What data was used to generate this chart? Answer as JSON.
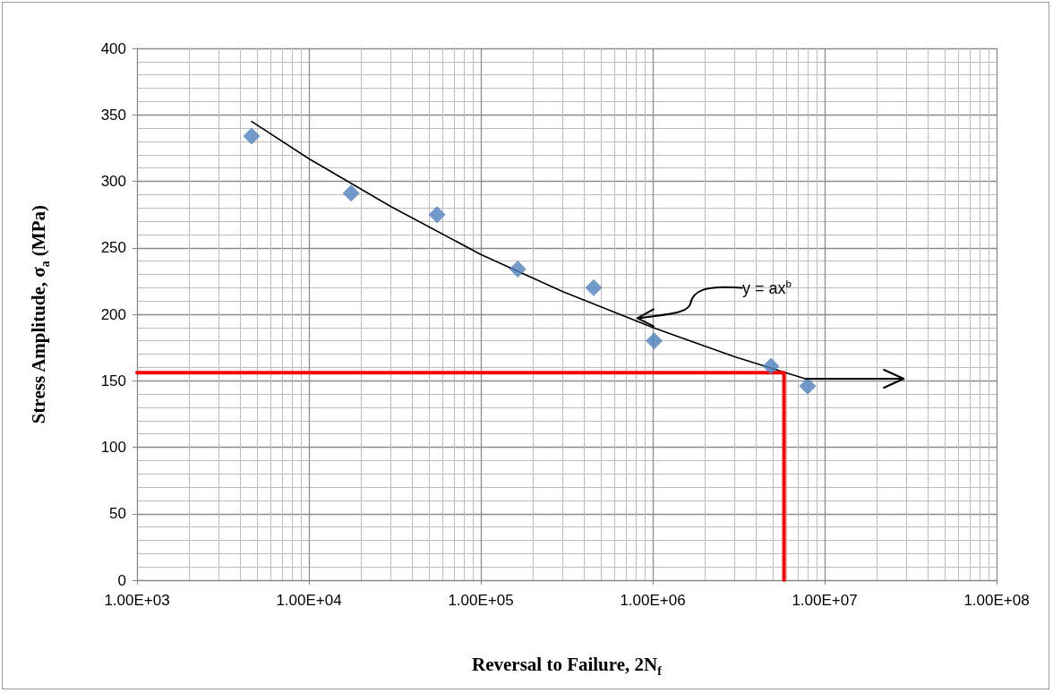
{
  "chart_data": {
    "type": "scatter",
    "xlabel": "Reversal to Failure, 2N$_{f}$",
    "ylabel": "Stress Amplitude, σ$_{a}$ (MPa)",
    "log": "x",
    "grid": true,
    "marker": "diamond",
    "xlim": [
      1000,
      100000000
    ],
    "ylim": [
      0,
      400
    ],
    "xticks": [
      {
        "value": 1000,
        "label": "1.00E+03"
      },
      {
        "value": 10000,
        "label": "1.00E+04"
      },
      {
        "value": 100000,
        "label": "1.00E+05"
      },
      {
        "value": 1000000,
        "label": "1.00E+06"
      },
      {
        "value": 10000000,
        "label": "1.00E+07"
      },
      {
        "value": 100000000,
        "label": "1.00E+08"
      }
    ],
    "yticks": [
      0,
      50,
      100,
      150,
      200,
      250,
      300,
      350,
      400
    ],
    "series": [
      {
        "color": "#4f81bd",
        "x": [
          4640,
          17600,
          55600,
          164000,
          453000,
          1020000,
          4870000,
          7960000
        ],
        "values": [
          334,
          291,
          275,
          234,
          220,
          180,
          161,
          146
        ]
      },
      {
        "type": "line",
        "color": "#000000",
        "marker": "none",
        "x": [
          4640,
          10000,
          30000,
          100000,
          300000,
          1000000,
          3000000,
          7700000
        ],
        "values": [
          345,
          317,
          281,
          245,
          217,
          190,
          168,
          151.5
        ]
      },
      {
        "type": "line",
        "color": "#ff0000",
        "marker": "none",
        "x": [
          1000,
          5800000,
          5800000
        ],
        "values": [
          156,
          156,
          0
        ]
      }
    ],
    "annotations": [
      {
        "text": "y = ax$^{b}$",
        "x": 815000,
        "y": 197
      }
    ]
  }
}
